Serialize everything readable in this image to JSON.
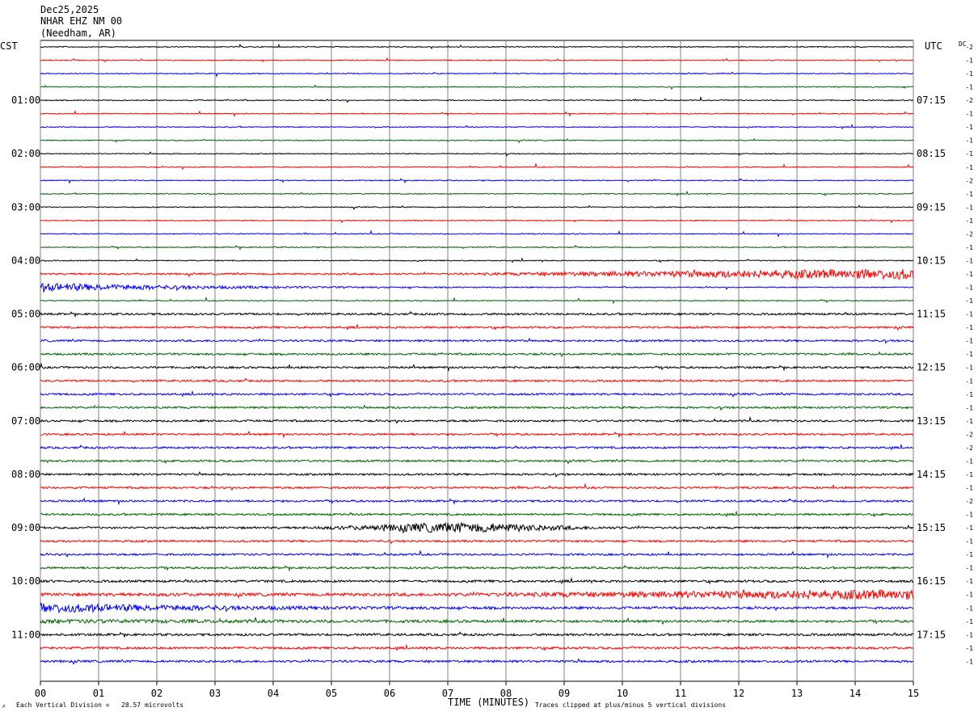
{
  "header": {
    "date": "Dec25,2025",
    "station": "NHAR EHZ NM 00",
    "location": "(Needham, AR)"
  },
  "left_zone": "CST",
  "right_zone": "UTC",
  "dc_label": "DC",
  "footer": {
    "left_mark": "↗",
    "scale_note": "Each Vertical Division =   28.57 microvolts",
    "xlabel": "TIME (MINUTES)",
    "clip_note": "Traces clipped at plus/minus 5 vertical divisions"
  },
  "chart_data": {
    "type": "line",
    "title": "",
    "xlabel": "TIME (MINUTES)",
    "xlim": [
      0,
      15
    ],
    "x_ticks": [
      "00",
      "01",
      "02",
      "03",
      "04",
      "05",
      "06",
      "07",
      "08",
      "09",
      "10",
      "11",
      "12",
      "13",
      "14",
      "15"
    ],
    "trace_colors": [
      "#000000",
      "#ff0000",
      "#0000ff",
      "#006400"
    ],
    "left_times": [
      "01:00",
      "02:00",
      "03:00",
      "04:00",
      "05:00",
      "06:00",
      "07:00",
      "08:00",
      "09:00",
      "10:00",
      "11:00"
    ],
    "right_times": [
      "07:15",
      "08:15",
      "09:15",
      "10:15",
      "11:15",
      "12:15",
      "13:15",
      "14:15",
      "15:15",
      "16:15",
      "17:15"
    ],
    "dc_offsets": [
      "-2",
      "-1",
      "-1",
      "-1",
      "-2",
      "-1",
      "-1",
      "-1",
      "-1",
      "-1",
      "-2",
      "-1",
      "-1",
      "-1",
      "-2",
      "-1",
      "-1",
      "-1",
      "-1",
      "-1",
      "-1",
      "-1",
      "-1",
      "-1",
      "-1",
      "-1",
      "-1",
      "-1",
      "-1",
      "-2",
      "-2",
      "-1",
      "-1",
      "-1",
      "-2",
      "-1",
      "-1",
      "-1",
      "-1",
      "-1",
      "-1",
      "-1",
      "-1",
      "-1",
      "-1",
      "-1",
      "-1"
    ]
  }
}
